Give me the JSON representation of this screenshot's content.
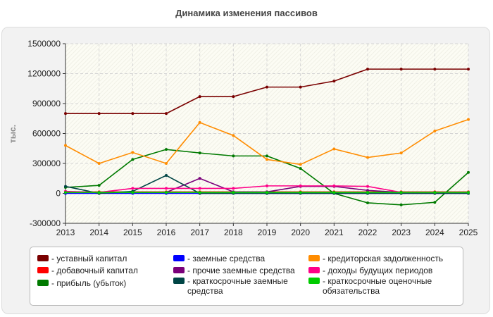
{
  "title": "Динамика изменения пассивов",
  "chart_data": {
    "type": "line",
    "title": "Динамика изменения пассивов",
    "ylabel": "тыс.",
    "xlabel": "",
    "x": [
      2013,
      2014,
      2015,
      2016,
      2017,
      2018,
      2019,
      2020,
      2021,
      2022,
      2023,
      2024,
      2025
    ],
    "ylim": [
      -300000,
      1500000
    ],
    "yticks": [
      -300000,
      0,
      300000,
      600000,
      900000,
      1200000,
      1500000
    ],
    "ytick_labels": [
      "-300000",
      "0",
      "300000",
      "600000",
      "900000",
      "1200000",
      "1500000"
    ],
    "grid": true,
    "legend_position": "bottom",
    "series": [
      {
        "name": "- уставный капитал",
        "color": "#7a0000",
        "values": [
          800000,
          800000,
          800000,
          800000,
          970000,
          970000,
          1065000,
          1065000,
          1125000,
          1245000,
          1245000,
          1245000,
          1245000
        ]
      },
      {
        "name": "- добавочный капитал",
        "color": "#ff0000",
        "values": [
          15000,
          15000,
          15000,
          15000,
          15000,
          15000,
          15000,
          15000,
          15000,
          15000,
          15000,
          15000,
          15000
        ]
      },
      {
        "name": "- прибыль (убыток)",
        "color": "#007a00",
        "values": [
          60000,
          80000,
          340000,
          440000,
          405000,
          375000,
          375000,
          250000,
          0,
          -95000,
          -115000,
          -90000,
          210000
        ]
      },
      {
        "name": "- заемные средства",
        "color": "#0000ff",
        "values": [
          0,
          0,
          0,
          0,
          0,
          0,
          0,
          0,
          0,
          0,
          0,
          0,
          0
        ]
      },
      {
        "name": "- прочие заемные средства",
        "color": "#7a007a",
        "values": [
          10000,
          10000,
          10000,
          10000,
          150000,
          15000,
          15000,
          70000,
          70000,
          30000,
          10000,
          10000,
          10000
        ]
      },
      {
        "name": "- краткосрочные заемные средства",
        "color": "#004545",
        "values": [
          70000,
          0,
          20000,
          180000,
          0,
          0,
          0,
          0,
          0,
          0,
          0,
          0,
          0
        ]
      },
      {
        "name": "- кредиторская задолженность",
        "color": "#ff8c00",
        "values": [
          480000,
          300000,
          410000,
          300000,
          710000,
          580000,
          340000,
          290000,
          445000,
          360000,
          405000,
          625000,
          740000
        ]
      },
      {
        "name": "- доходы будущих периодов",
        "color": "#ff0088",
        "values": [
          20000,
          10000,
          50000,
          50000,
          50000,
          50000,
          75000,
          75000,
          75000,
          70000,
          10000,
          10000,
          10000
        ]
      },
      {
        "name": "- краткосрочные оценочные обязательства",
        "color": "#00cc00",
        "values": [
          10000,
          10000,
          10000,
          10000,
          10000,
          10000,
          10000,
          10000,
          10000,
          10000,
          10000,
          10000,
          10000
        ]
      }
    ]
  }
}
